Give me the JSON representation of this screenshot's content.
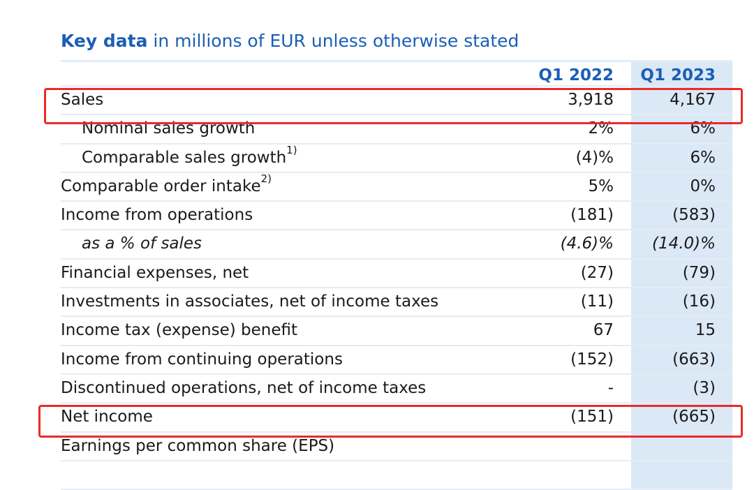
{
  "title": {
    "bold": "Key data",
    "rest": " in millions of EUR unless otherwise stated"
  },
  "columns": [
    "Q1 2022",
    "Q1 2023"
  ],
  "rows": [
    {
      "label": "Sales",
      "sup": "",
      "q1_2022": "3,918",
      "q1_2023": "4,167"
    },
    {
      "label": "Nominal sales growth",
      "sup": "",
      "q1_2022": "2%",
      "q1_2023": "6%"
    },
    {
      "label": "Comparable sales growth",
      "sup": "1)",
      "q1_2022": "(4)%",
      "q1_2023": "6%"
    },
    {
      "label": "Comparable order intake",
      "sup": "2)",
      "q1_2022": "5%",
      "q1_2023": "0%"
    },
    {
      "label": "Income from operations",
      "sup": "",
      "q1_2022": "(181)",
      "q1_2023": "(583)"
    },
    {
      "label": "as a % of sales",
      "sup": "",
      "q1_2022": "(4.6)%",
      "q1_2023": "(14.0)%"
    },
    {
      "label": "Financial expenses, net",
      "sup": "",
      "q1_2022": "(27)",
      "q1_2023": "(79)"
    },
    {
      "label": "Investments in associates, net of income taxes",
      "sup": "",
      "q1_2022": "(11)",
      "q1_2023": "(16)"
    },
    {
      "label": "Income tax (expense) benefit",
      "sup": "",
      "q1_2022": "67",
      "q1_2023": "15"
    },
    {
      "label": "Income from continuing operations",
      "sup": "",
      "q1_2022": "(152)",
      "q1_2023": "(663)"
    },
    {
      "label": "Discontinued operations, net of income taxes",
      "sup": "",
      "q1_2022": "-",
      "q1_2023": "(3)"
    },
    {
      "label": "Net income",
      "sup": "",
      "q1_2022": "(151)",
      "q1_2023": "(665)"
    },
    {
      "label": "Earnings per common share (EPS)",
      "sup": "",
      "q1_2022": "",
      "q1_2023": ""
    }
  ],
  "colors": {
    "accent": "#1a5fb4",
    "column_highlight": "#dbe8f6",
    "annotation_box": "#ea2a2a"
  }
}
